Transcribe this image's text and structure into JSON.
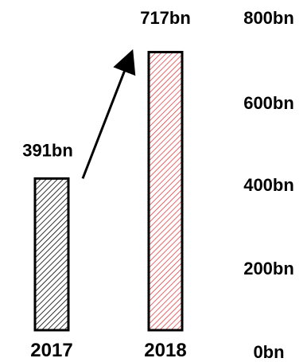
{
  "chart_data": {
    "type": "bar",
    "title": "",
    "xlabel": "",
    "ylabel": "",
    "categories": [
      "2017",
      "2018"
    ],
    "values": [
      391,
      717
    ],
    "value_labels": [
      "391bn",
      "717bn"
    ],
    "y_ticks": [
      0,
      200,
      400,
      600,
      800
    ],
    "y_tick_labels": [
      "0bn",
      "200bn",
      "400bn",
      "600bn",
      "800bn"
    ],
    "ylim": [
      0,
      800
    ],
    "y_axis_position": "right",
    "grid": false,
    "legend": "none",
    "bar_colors": [
      "#000000",
      "#e0272b"
    ],
    "bar_pattern": "diagonal-hatch",
    "annotation": "arrow from 2017 bar to 2018 bar"
  }
}
